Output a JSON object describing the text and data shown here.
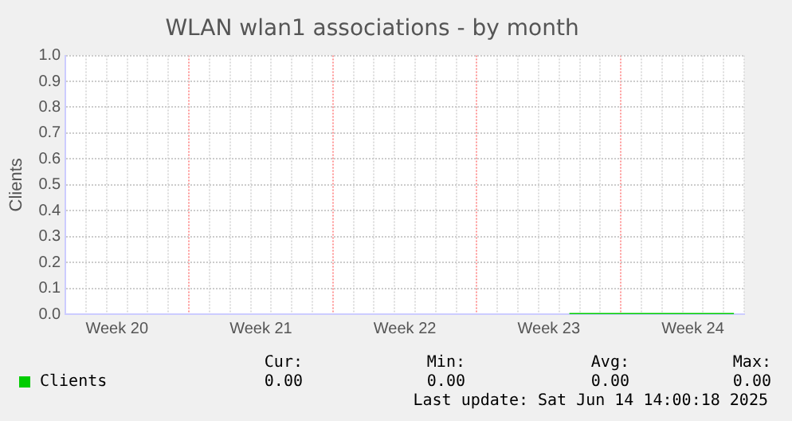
{
  "chart_data": {
    "type": "line",
    "title": "WLAN wlan1 associations - by month",
    "ylabel": "Clients",
    "categories": [
      null,
      null,
      "Week 20",
      null,
      null,
      null,
      null,
      null,
      null,
      "Week 21",
      null,
      null,
      null,
      null,
      null,
      null,
      "Week 22",
      null,
      null,
      null,
      null,
      null,
      null,
      "Week 23",
      null,
      null,
      null,
      null,
      null,
      null,
      "Week 24",
      null,
      null
    ],
    "series": [
      {
        "name": "Clients",
        "color": "#00cc00",
        "values": [
          null,
          null,
          null,
          null,
          null,
          null,
          null,
          null,
          null,
          null,
          null,
          null,
          null,
          null,
          null,
          null,
          null,
          null,
          null,
          null,
          null,
          null,
          null,
          null,
          0,
          0,
          0,
          0,
          0,
          0,
          0,
          0,
          0
        ]
      }
    ],
    "ylim": [
      0,
      1
    ],
    "yticks": [
      {
        "value": 0,
        "label": "0.0"
      },
      {
        "value": 0.1,
        "label": "0.1"
      },
      {
        "value": 0.2,
        "label": "0.2"
      },
      {
        "value": 0.3,
        "label": "0.3"
      },
      {
        "value": 0.4,
        "label": "0.4"
      },
      {
        "value": 0.5,
        "label": "0.5"
      },
      {
        "value": 0.6,
        "label": "0.6"
      },
      {
        "value": 0.7,
        "label": "0.7"
      },
      {
        "value": 0.8,
        "label": "0.8"
      },
      {
        "value": 0.9,
        "label": "0.9"
      },
      {
        "value": 1,
        "label": "1.0"
      }
    ],
    "grid": true,
    "legend": "bottom left",
    "marker": "none",
    "line_style": "solid",
    "annotations": [
      "Cur:",
      "Min:",
      "Avg:",
      "Max:",
      "0.00",
      "0.00",
      "0.00",
      "0.00",
      "Last update: Sat Jun 14 14:00:18 2025"
    ]
  }
}
